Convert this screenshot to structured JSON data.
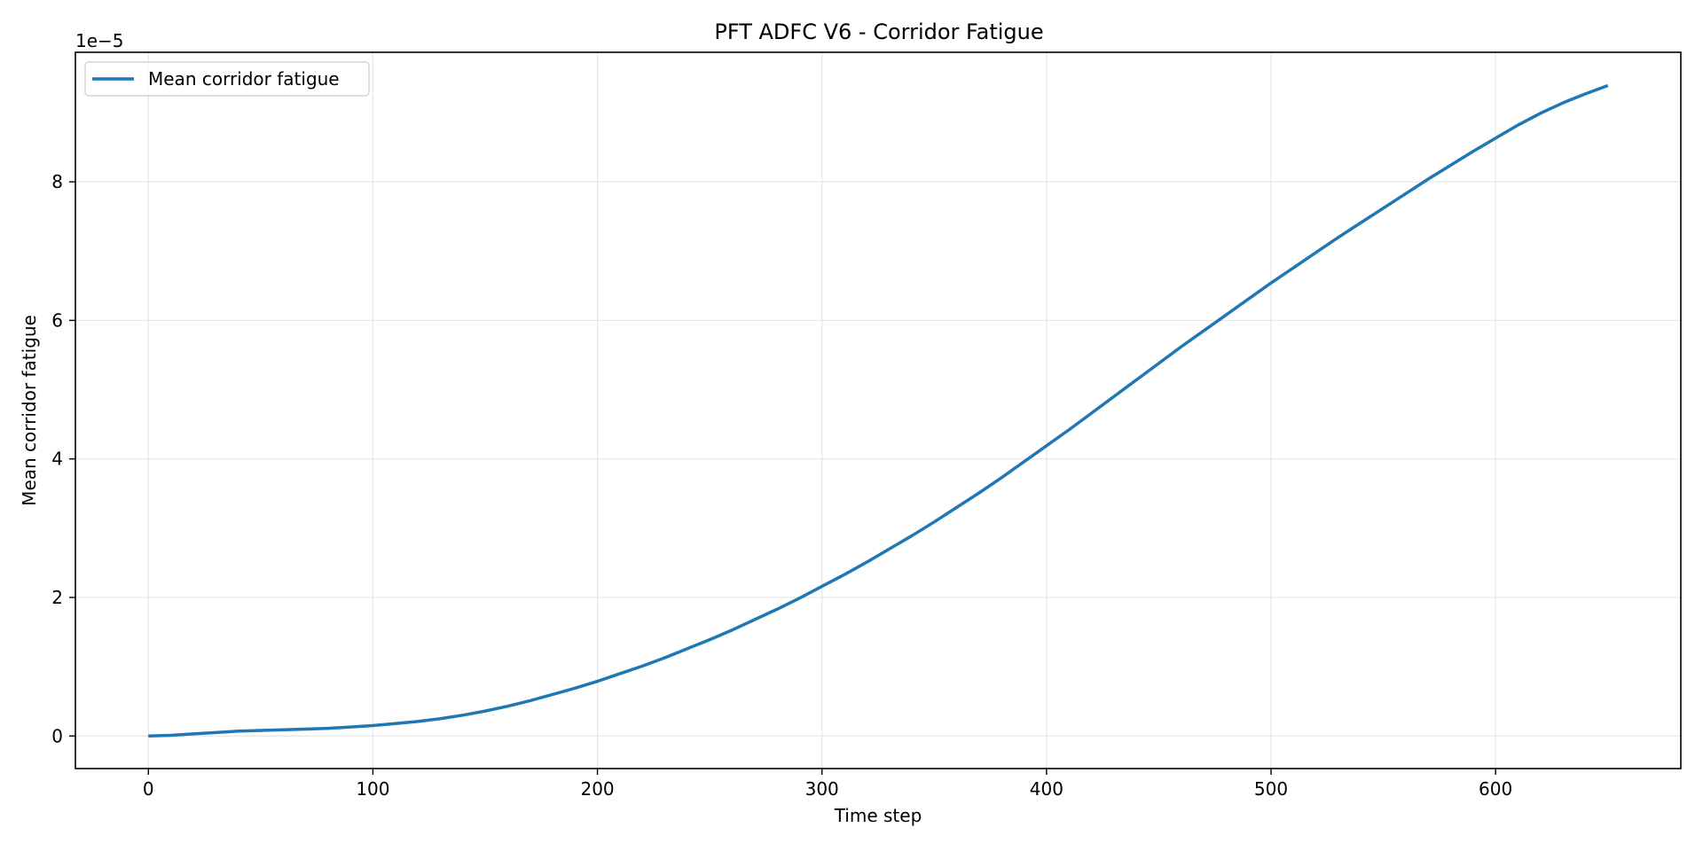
{
  "chart_data": {
    "type": "line",
    "title": "PFT ADFC V6 - Corridor Fatigue",
    "xlabel": "Time step",
    "ylabel": "Mean corridor fatigue",
    "y_offset_label": "1e−5",
    "y_scale_factor": 1e-05,
    "xlim": [
      -32.5,
      682.5
    ],
    "ylim": [
      -4.7e-06,
      9.87e-05
    ],
    "xticks": [
      0,
      100,
      200,
      300,
      400,
      500,
      600
    ],
    "xtick_labels": [
      "0",
      "100",
      "200",
      "300",
      "400",
      "500",
      "600"
    ],
    "yticks": [
      0,
      2e-05,
      4e-05,
      6e-05,
      8e-05
    ],
    "ytick_labels": [
      "0",
      "2",
      "4",
      "6",
      "8"
    ],
    "grid": true,
    "legend": {
      "placement": "top-left"
    },
    "series": [
      {
        "name": "Mean corridor fatigue",
        "color": "#1f77b4",
        "x": [
          0,
          10,
          20,
          30,
          40,
          50,
          60,
          70,
          80,
          90,
          100,
          110,
          120,
          130,
          140,
          150,
          160,
          170,
          180,
          190,
          200,
          210,
          220,
          230,
          240,
          250,
          260,
          270,
          280,
          290,
          300,
          310,
          320,
          330,
          340,
          350,
          360,
          370,
          380,
          390,
          400,
          410,
          420,
          430,
          440,
          450,
          460,
          470,
          480,
          490,
          500,
          510,
          520,
          530,
          540,
          550,
          560,
          570,
          580,
          590,
          600,
          610,
          620,
          630,
          640,
          650
        ],
        "y": [
          0,
          1e-07,
          3e-07,
          5e-07,
          7e-07,
          8e-07,
          9e-07,
          1e-06,
          1.1e-06,
          1.3e-06,
          1.5e-06,
          1.8e-06,
          2.1e-06,
          2.5e-06,
          3e-06,
          3.6e-06,
          4.3e-06,
          5.1e-06,
          6e-06,
          6.9e-06,
          7.9e-06,
          9e-06,
          1.01e-05,
          1.13e-05,
          1.26e-05,
          1.39e-05,
          1.53e-05,
          1.68e-05,
          1.83e-05,
          1.99e-05,
          2.16e-05,
          2.33e-05,
          2.51e-05,
          2.7e-05,
          2.89e-05,
          3.09e-05,
          3.3e-05,
          3.51e-05,
          3.73e-05,
          3.96e-05,
          4.19e-05,
          4.42e-05,
          4.66e-05,
          4.9e-05,
          5.14e-05,
          5.38e-05,
          5.62e-05,
          5.85e-05,
          6.08e-05,
          6.31e-05,
          6.54e-05,
          6.76e-05,
          6.98e-05,
          7.2e-05,
          7.41e-05,
          7.62e-05,
          7.83e-05,
          8.04e-05,
          8.24e-05,
          8.44e-05,
          8.63e-05,
          8.82e-05,
          8.99e-05,
          9.14e-05,
          9.27e-05,
          9.39e-05
        ]
      }
    ]
  }
}
